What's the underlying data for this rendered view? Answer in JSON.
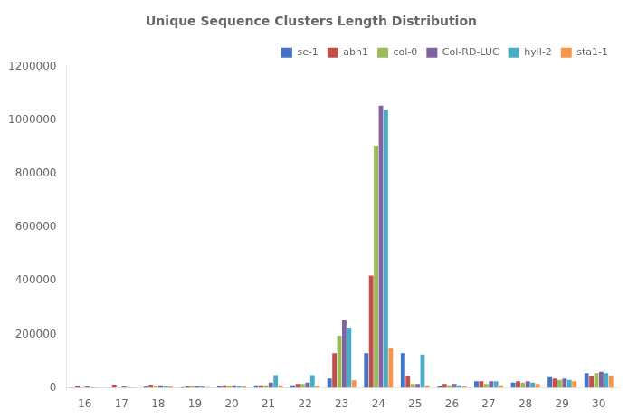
{
  "chart_data": {
    "type": "bar",
    "title": "Unique Sequence Clusters Length Distribution",
    "categories": [
      "16",
      "17",
      "18",
      "19",
      "20",
      "21",
      "22",
      "23",
      "24",
      "25",
      "26",
      "27",
      "28",
      "29",
      "30"
    ],
    "series": [
      {
        "name": "se-1",
        "color": "#4472c4",
        "values": [
          2000,
          1000,
          5000,
          3000,
          5000,
          10000,
          10000,
          35000,
          130000,
          130000,
          5000,
          25000,
          20000,
          40000,
          55000
        ]
      },
      {
        "name": "abh1",
        "color": "#c0504d",
        "values": [
          8000,
          12000,
          12000,
          5000,
          10000,
          10000,
          15000,
          130000,
          420000,
          45000,
          15000,
          25000,
          25000,
          35000,
          45000
        ]
      },
      {
        "name": "col-0",
        "color": "#9bbb59",
        "values": [
          3000,
          2000,
          8000,
          5000,
          8000,
          10000,
          15000,
          195000,
          905000,
          15000,
          10000,
          15000,
          20000,
          30000,
          55000
        ]
      },
      {
        "name": "Col-RD-LUC",
        "color": "#8064a2",
        "values": [
          5000,
          5000,
          10000,
          5000,
          10000,
          20000,
          20000,
          252000,
          1055000,
          15000,
          15000,
          25000,
          25000,
          35000,
          60000
        ]
      },
      {
        "name": "hyll-2",
        "color": "#4bacc6",
        "values": [
          3000,
          3000,
          8000,
          5000,
          8000,
          48000,
          48000,
          225000,
          1040000,
          125000,
          10000,
          25000,
          20000,
          30000,
          55000
        ]
      },
      {
        "name": "sta1-1",
        "color": "#f79646",
        "values": [
          2000,
          2000,
          5000,
          3000,
          5000,
          10000,
          8000,
          28000,
          150000,
          10000,
          5000,
          10000,
          15000,
          25000,
          45000
        ]
      }
    ],
    "ylim": [
      0,
      1200000
    ],
    "yticks": [
      0,
      200000,
      400000,
      600000,
      800000,
      1000000,
      1200000
    ],
    "grid": false,
    "legend": "upper right"
  }
}
